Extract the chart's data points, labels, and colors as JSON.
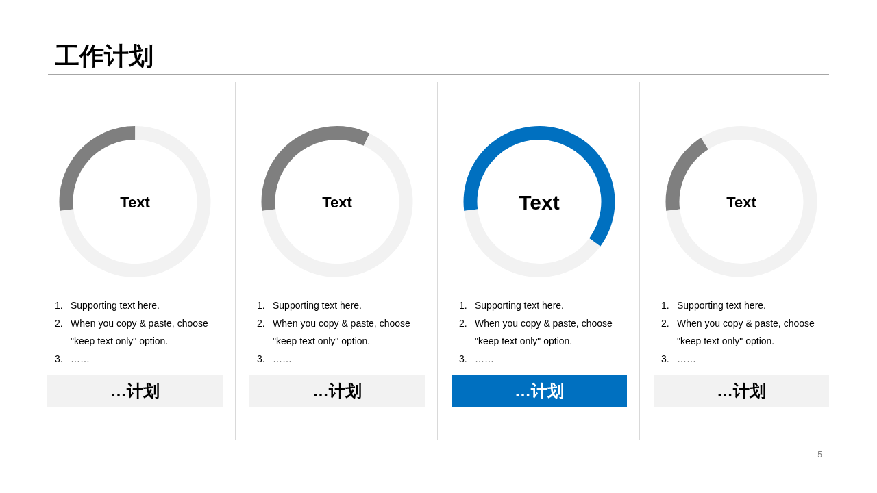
{
  "chart_data": [
    {
      "type": "other",
      "title": "工作计划",
      "annotations": [
        "5"
      ]
    },
    {
      "type": "donut",
      "title": "Text",
      "categories": [
        null,
        null
      ],
      "values": [
        27,
        73
      ],
      "colors": [
        "#7f7f7f",
        "#f2f2f2"
      ],
      "annotations": [
        "1. Supporting text here.",
        "2. When you copy & paste, choose \"keep text only\" option.",
        "3. ……",
        "…计划"
      ]
    },
    {
      "type": "donut",
      "title": "Text",
      "categories": [
        null,
        null
      ],
      "values": [
        34,
        66
      ],
      "colors": [
        "#7f7f7f",
        "#f2f2f2"
      ],
      "annotations": [
        "1. Supporting text here.",
        "2. When you copy & paste, choose \"keep text only\" option.",
        "3. ……",
        "…计划"
      ]
    },
    {
      "type": "donut",
      "title": "Text",
      "categories": [
        null,
        null
      ],
      "values": [
        62,
        38
      ],
      "colors": [
        "#0070c0",
        "#f2f2f2"
      ],
      "annotations": [
        "1. Supporting text here.",
        "2. When you copy & paste, choose \"keep text only\" option.",
        "3. ……",
        "…计划"
      ]
    },
    {
      "type": "donut",
      "title": "Text",
      "categories": [
        null,
        null
      ],
      "values": [
        18,
        82
      ],
      "colors": [
        "#7f7f7f",
        "#f2f2f2"
      ],
      "annotations": [
        "1. Supporting text here.",
        "2. When you copy & paste, choose \"keep text only\" option.",
        "3. ……",
        "…计划"
      ]
    }
  ]
}
